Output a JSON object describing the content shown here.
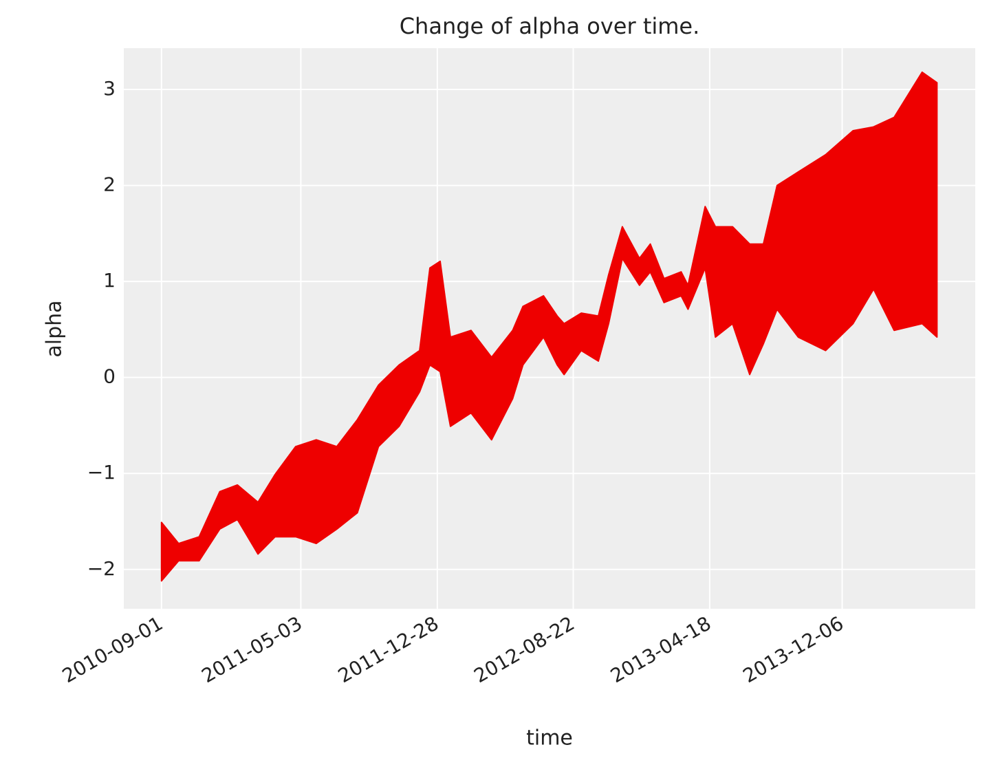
{
  "chart_data": {
    "type": "band",
    "title": "Change of alpha over time.",
    "x_label": "time",
    "y_label": "alpha",
    "color": "#ee0000",
    "grid": true,
    "x": [
      "2010-09-01",
      "2010-10-01",
      "2010-11-06",
      "2010-12-12",
      "2011-01-12",
      "2011-02-17",
      "2011-03-19",
      "2011-04-24",
      "2011-05-30",
      "2011-07-05",
      "2011-08-10",
      "2011-09-16",
      "2011-10-22",
      "2011-11-27",
      "2011-12-15",
      "2012-01-02",
      "2012-01-20",
      "2012-02-25",
      "2012-04-01",
      "2012-05-08",
      "2012-05-26",
      "2012-07-01",
      "2012-07-25",
      "2012-08-06",
      "2012-09-05",
      "2012-10-05",
      "2012-10-23",
      "2012-11-16",
      "2012-12-16",
      "2013-01-04",
      "2013-01-28",
      "2013-02-27",
      "2013-03-11",
      "2013-04-10",
      "2013-04-28",
      "2013-05-28",
      "2013-06-27",
      "2013-07-21",
      "2013-08-14",
      "2013-09-20",
      "2013-11-07",
      "2013-12-25",
      "2014-01-30",
      "2014-03-07",
      "2014-04-25",
      "2014-05-21"
    ],
    "upper": [
      -1.51,
      -1.73,
      -1.66,
      -1.19,
      -1.12,
      -1.3,
      -1.01,
      -0.72,
      -0.65,
      -0.72,
      -0.44,
      -0.08,
      0.13,
      0.28,
      1.14,
      1.21,
      0.42,
      0.49,
      0.21,
      0.49,
      0.74,
      0.85,
      0.64,
      0.56,
      0.67,
      0.64,
      1.07,
      1.57,
      1.24,
      1.39,
      1.03,
      1.1,
      0.96,
      1.78,
      1.57,
      1.57,
      1.39,
      1.39,
      2.0,
      2.14,
      2.32,
      2.57,
      2.61,
      2.71,
      3.18,
      3.07
    ],
    "lower": [
      -2.12,
      -1.91,
      -1.91,
      -1.58,
      -1.48,
      -1.84,
      -1.66,
      -1.66,
      -1.73,
      -1.58,
      -1.41,
      -0.72,
      -0.51,
      -0.15,
      0.13,
      0.06,
      -0.51,
      -0.37,
      -0.65,
      -0.22,
      0.13,
      0.42,
      0.13,
      0.03,
      0.28,
      0.17,
      0.56,
      1.24,
      0.96,
      1.1,
      0.78,
      0.85,
      0.71,
      1.14,
      0.42,
      0.56,
      0.03,
      0.35,
      0.71,
      0.42,
      0.28,
      0.56,
      0.92,
      0.49,
      0.56,
      0.42
    ],
    "xlim": [
      "2010-06-27",
      "2014-07-27"
    ],
    "xticks": [
      "2010-09-01",
      "2011-05-03",
      "2011-12-28",
      "2012-08-22",
      "2013-04-18",
      "2013-12-06"
    ],
    "ylim": [
      -2.41,
      3.43
    ],
    "yticks": [
      {
        "value": -2,
        "label": "−2"
      },
      {
        "value": -1,
        "label": "−1"
      },
      0,
      1,
      2,
      3
    ]
  }
}
